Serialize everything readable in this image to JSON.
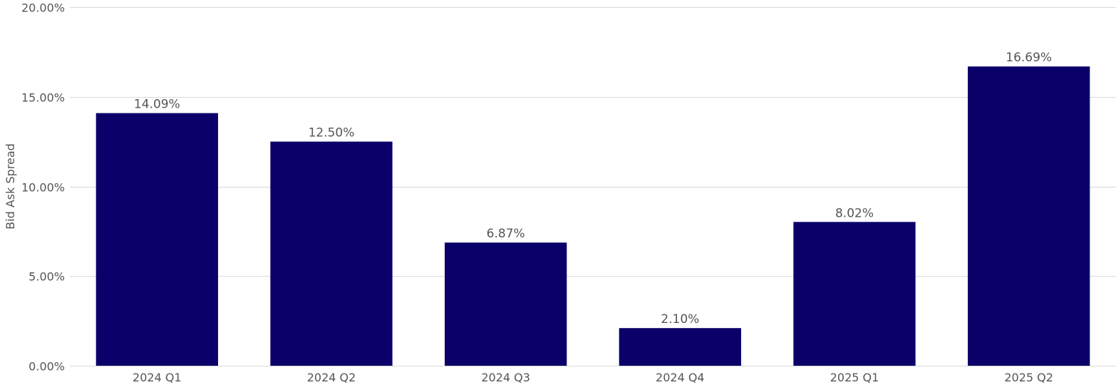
{
  "chart_data": {
    "type": "bar",
    "categories": [
      "2024 Q1",
      "2024 Q2",
      "2024 Q3",
      "2024 Q4",
      "2025 Q1",
      "2025 Q2"
    ],
    "values": [
      14.09,
      12.5,
      6.87,
      2.1,
      8.02,
      16.69
    ],
    "data_labels": [
      "14.09%",
      "12.50%",
      "6.87%",
      "2.10%",
      "8.02%",
      "16.69%"
    ],
    "ylabel": "Bid Ask Spread",
    "xlabel": "",
    "ylim": [
      0,
      20
    ],
    "yticks": [
      0,
      5,
      10,
      15,
      20
    ],
    "ytick_labels": [
      "0.00%",
      "5.00%",
      "10.00%",
      "15.00%",
      "20.00%"
    ],
    "grid": true,
    "legend": "none",
    "colors": {
      "bar": "#0b006a",
      "grid": "#d9d9d9",
      "text": "#555555"
    }
  }
}
